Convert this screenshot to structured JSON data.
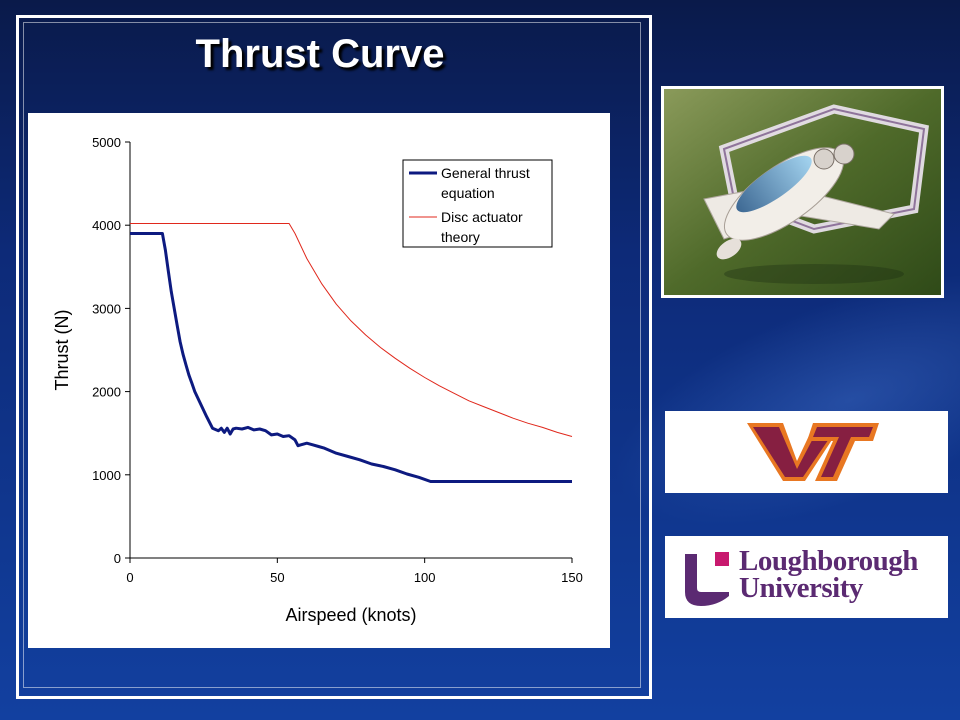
{
  "slide": {
    "title": "Thrust Curve"
  },
  "logos": {
    "vt": "VT",
    "loughborough_line1": "Loughborough",
    "loughborough_line2": "University"
  },
  "photo": {
    "icon": "aircraft-render-image"
  },
  "colors": {
    "background_top": "#0a1a4a",
    "background_bottom": "#1240a0",
    "series_general": "#0d1a80",
    "series_disc": "#e0281c",
    "vt_maroon": "#861f41",
    "vt_orange": "#e87722",
    "lu_purple": "#5b2a72",
    "lu_magenta": "#c8196e"
  },
  "chart_data": {
    "type": "line",
    "title": "",
    "xlabel": "Airspeed (knots)",
    "ylabel": "Thrust (N)",
    "xlim": [
      0,
      150
    ],
    "ylim": [
      0,
      5000
    ],
    "xticks": [
      "0",
      "50",
      "100",
      "150"
    ],
    "yticks": [
      "0",
      "1000",
      "2000",
      "3000",
      "4000",
      "5000"
    ],
    "grid": false,
    "legend_position": "top-right",
    "series": [
      {
        "name": "General thrust equation",
        "color": "#0d1a80",
        "x": [
          0,
          11,
          12,
          13,
          14,
          15,
          16,
          17,
          18,
          19,
          20,
          21,
          22,
          24,
          26,
          28,
          30,
          31,
          32,
          33,
          34,
          35,
          36,
          38,
          40,
          42,
          44,
          46,
          48,
          50,
          52,
          54,
          56,
          57,
          58,
          60,
          62,
          64,
          66,
          70,
          74,
          78,
          82,
          86,
          90,
          94,
          98,
          102,
          150
        ],
        "y": [
          3900,
          3900,
          3700,
          3450,
          3200,
          3000,
          2800,
          2600,
          2450,
          2320,
          2200,
          2100,
          2000,
          1850,
          1700,
          1560,
          1530,
          1560,
          1510,
          1560,
          1490,
          1550,
          1560,
          1550,
          1570,
          1540,
          1550,
          1530,
          1480,
          1490,
          1460,
          1470,
          1420,
          1350,
          1360,
          1380,
          1360,
          1340,
          1320,
          1260,
          1220,
          1180,
          1130,
          1100,
          1060,
          1010,
          970,
          920,
          920
        ]
      },
      {
        "name": "Disc actuator theory",
        "color": "#e0281c",
        "x": [
          0,
          54,
          56,
          60,
          65,
          70,
          75,
          80,
          85,
          90,
          95,
          100,
          105,
          110,
          115,
          120,
          125,
          130,
          135,
          140,
          145,
          150
        ],
        "y": [
          4020,
          4020,
          3900,
          3600,
          3300,
          3050,
          2850,
          2680,
          2530,
          2400,
          2280,
          2170,
          2070,
          1980,
          1890,
          1820,
          1750,
          1680,
          1620,
          1570,
          1510,
          1460
        ]
      }
    ]
  }
}
